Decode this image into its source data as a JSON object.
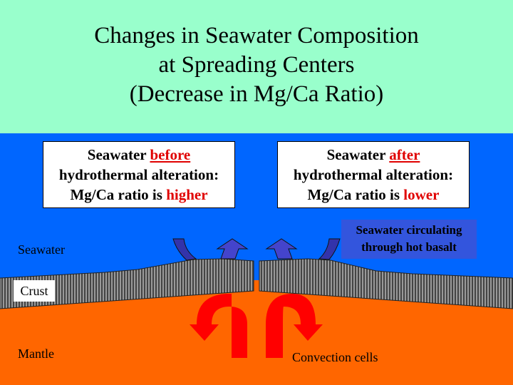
{
  "title": {
    "line1": "Changes in Seawater Composition",
    "line2": "at Spreading Centers",
    "line3": "(Decrease in Mg/Ca Ratio)"
  },
  "before_box": {
    "prefix": "Seawater ",
    "keyword": "before",
    "line2": "hydrothermal alteration:",
    "line3_prefix": "Mg/Ca ratio is ",
    "line3_keyword": "higher"
  },
  "after_box": {
    "prefix": "Seawater ",
    "keyword": "after",
    "line2": "hydrothermal alteration:",
    "line3_prefix": "Mg/Ca ratio is ",
    "line3_keyword": "lower"
  },
  "labels": {
    "seawater": "Seawater",
    "crust": "Crust",
    "mantle": "Mantle",
    "convection": "Convection cells",
    "circulating_line1": "Seawater circulating",
    "circulating_line2": "through hot basalt"
  },
  "colors": {
    "title_bg": "#99ffcc",
    "seawater": "#0066ff",
    "mantle": "#ff6600",
    "convection_arrow": "#ff0000",
    "circulation_arrow": "#3333aa",
    "keyword": "#e00000"
  }
}
